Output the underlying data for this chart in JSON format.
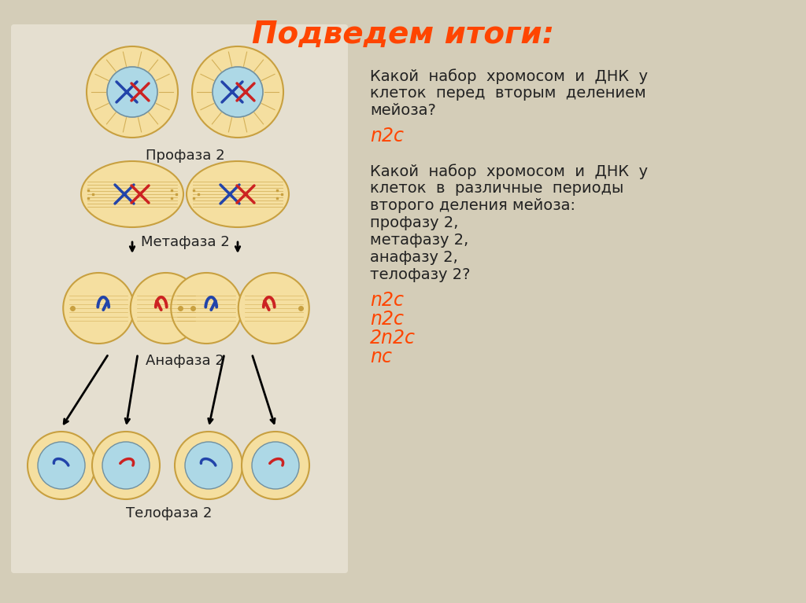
{
  "title": "Подведем итоги:",
  "title_color": "#FF4500",
  "title_fontsize": 28,
  "bg_color": "#D4CDB8",
  "cell_outer_color": "#F5DFA0",
  "cell_outer_edge": "#C8A040",
  "nucleus_color": "#ADD8E6",
  "nucleus_edge": "#7090A0",
  "spindle_color": "#C8A040",
  "blue_chrom": "#2244AA",
  "red_chrom": "#CC2222",
  "q1_text_lines": [
    "Какой  набор  хромосом  и  ДНК  у",
    "клеток  перед  вторым  делением",
    "мейоза?"
  ],
  "a1_text": "n2c",
  "q2_text_lines": [
    "Какой  набор  хромосом  и  ДНК  у",
    "клеток  в  различные  периоды",
    "второго деления мейоза:",
    "профазу 2,",
    "метафазу 2,",
    "анафазу 2,",
    "телофазу 2?"
  ],
  "a2_lines": [
    "n2c",
    "n2c",
    "2n2c",
    "nc"
  ],
  "answer_color": "#FF4500",
  "label_prophase": "Профаза 2",
  "label_metaphase": "Метафаза 2",
  "label_anaphase": "Анафаза 2",
  "label_telophase": "Телофаза 2",
  "label_color": "#222222",
  "label_fontsize": 13
}
